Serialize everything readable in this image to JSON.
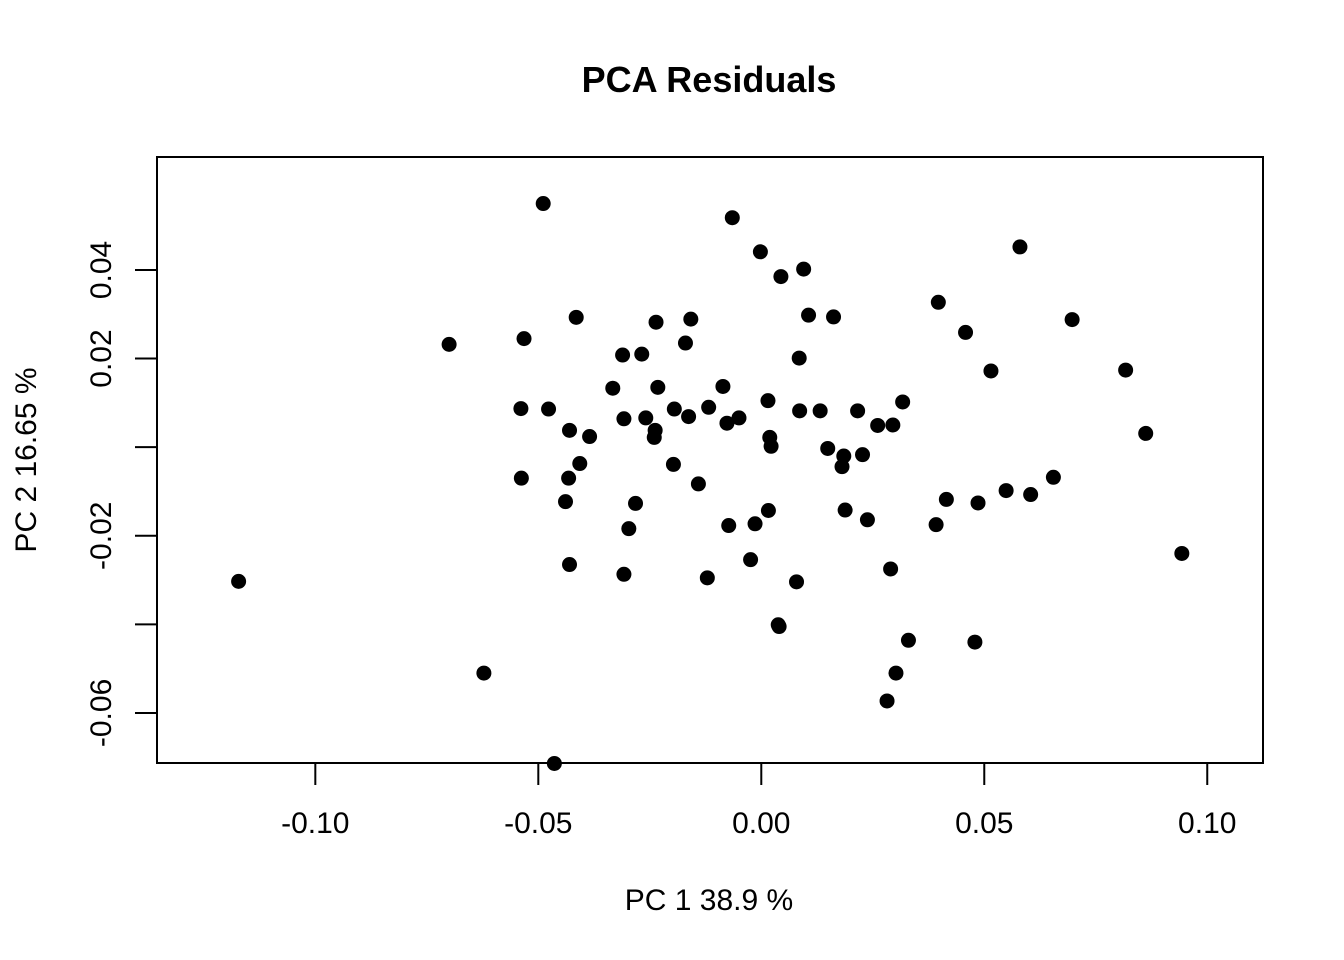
{
  "chart_data": {
    "type": "scatter",
    "title": "PCA Residuals",
    "xlabel": "PC 1 38.9 %",
    "ylabel": "PC 2 16.65 %",
    "xlim": [
      -0.1355,
      0.1125
    ],
    "ylim": [
      -0.0713,
      0.0655
    ],
    "x_ticks": [
      -0.1,
      -0.05,
      0.0,
      0.05,
      0.1
    ],
    "x_tick_labels": [
      "-0.10",
      "-0.05",
      "0.00",
      "0.05",
      "0.10"
    ],
    "y_ticks": [
      -0.06,
      -0.04,
      -0.02,
      0.0,
      0.02,
      0.04
    ],
    "y_tick_labels": [
      "-0.06",
      "",
      "-0.02",
      "",
      "0.02",
      "0.04"
    ],
    "grid": false,
    "point_color": "#000000",
    "series": [
      {
        "points": [
          [
            -0.0489,
            0.055
          ],
          [
            -0.0065,
            0.0518
          ],
          [
            -0.0002,
            0.0441
          ],
          [
            0.0095,
            0.0402
          ],
          [
            0.0044,
            0.0385
          ],
          [
            0.058,
            0.0452
          ],
          [
            0.0397,
            0.0327
          ],
          [
            0.0697,
            0.0288
          ],
          [
            0.0106,
            0.0298
          ],
          [
            0.0162,
            0.0294
          ],
          [
            -0.0415,
            0.0293
          ],
          [
            -0.0158,
            0.0289
          ],
          [
            -0.0236,
            0.0282
          ],
          [
            0.0458,
            0.0259
          ],
          [
            -0.07,
            0.0232
          ],
          [
            -0.0532,
            0.0245
          ],
          [
            -0.017,
            0.0235
          ],
          [
            -0.0311,
            0.0208
          ],
          [
            -0.0268,
            0.021
          ],
          [
            0.0085,
            0.0201
          ],
          [
            0.0515,
            0.0172
          ],
          [
            0.0817,
            0.0174
          ],
          [
            -0.0333,
            0.0133
          ],
          [
            -0.0232,
            0.0135
          ],
          [
            -0.0086,
            0.0137
          ],
          [
            0.0015,
            0.0105
          ],
          [
            0.0317,
            0.0102
          ],
          [
            -0.0539,
            0.0087
          ],
          [
            -0.0477,
            0.0086
          ],
          [
            -0.0195,
            0.0086
          ],
          [
            -0.0118,
            0.009
          ],
          [
            0.0086,
            0.0082
          ],
          [
            0.0132,
            0.0082
          ],
          [
            0.0216,
            0.0082
          ],
          [
            -0.0308,
            0.0064
          ],
          [
            -0.0259,
            0.0066
          ],
          [
            -0.0163,
            0.0069
          ],
          [
            -0.005,
            0.0066
          ],
          [
            -0.0077,
            0.0054
          ],
          [
            0.0261,
            0.0049
          ],
          [
            0.0295,
            0.005
          ],
          [
            -0.043,
            0.0038
          ],
          [
            -0.0385,
            0.0024
          ],
          [
            -0.0238,
            0.0038
          ],
          [
            -0.024,
            0.0022
          ],
          [
            0.0019,
            0.0022
          ],
          [
            0.0862,
            0.0031
          ],
          [
            0.0022,
            0.0002
          ],
          [
            0.0149,
            -0.0003
          ],
          [
            0.0185,
            -0.002
          ],
          [
            0.0227,
            -0.0017
          ],
          [
            -0.0407,
            -0.0037
          ],
          [
            -0.0197,
            -0.0039
          ],
          [
            0.0181,
            -0.0044
          ],
          [
            -0.0538,
            -0.007
          ],
          [
            -0.0432,
            -0.007
          ],
          [
            -0.0141,
            -0.0083
          ],
          [
            0.0655,
            -0.0068
          ],
          [
            0.0549,
            -0.0098
          ],
          [
            0.0604,
            -0.0107
          ],
          [
            0.0415,
            -0.0118
          ],
          [
            0.0486,
            -0.0126
          ],
          [
            -0.0439,
            -0.0123
          ],
          [
            -0.0282,
            -0.0127
          ],
          [
            0.0016,
            -0.0143
          ],
          [
            0.0188,
            -0.0142
          ],
          [
            0.0238,
            -0.0164
          ],
          [
            -0.0073,
            -0.0177
          ],
          [
            -0.0014,
            -0.0173
          ],
          [
            0.0392,
            -0.0175
          ],
          [
            -0.0297,
            -0.0184
          ],
          [
            0.0943,
            -0.024
          ],
          [
            -0.043,
            -0.0265
          ],
          [
            -0.0024,
            -0.0254
          ],
          [
            0.029,
            -0.0275
          ],
          [
            -0.0308,
            -0.0287
          ],
          [
            -0.0121,
            -0.0295
          ],
          [
            0.0079,
            -0.0304
          ],
          [
            -0.1172,
            -0.0303
          ],
          [
            0.0038,
            -0.0401
          ],
          [
            0.004,
            -0.0405
          ],
          [
            0.033,
            -0.0436
          ],
          [
            0.0479,
            -0.044
          ],
          [
            -0.0622,
            -0.051
          ],
          [
            0.0302,
            -0.051
          ],
          [
            0.0282,
            -0.0573
          ],
          [
            -0.0464,
            -0.0714
          ]
        ]
      }
    ]
  }
}
